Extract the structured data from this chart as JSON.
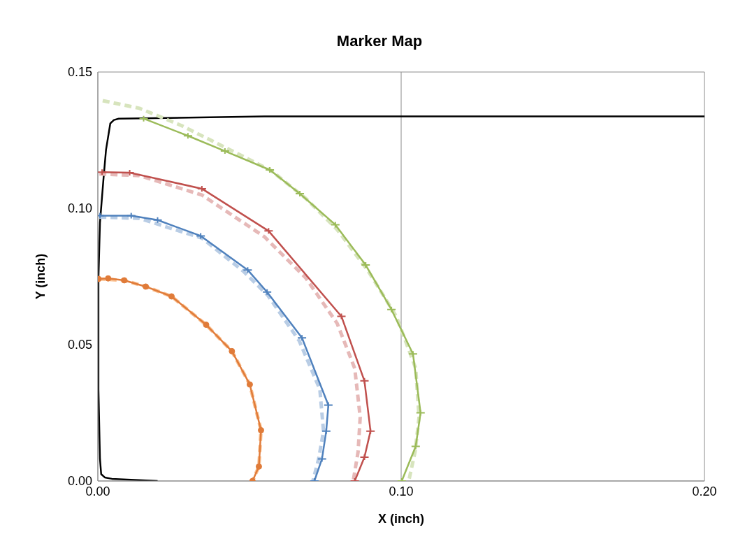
{
  "chart_data": {
    "type": "line",
    "title": "Marker Map",
    "xlabel": "X (inch)",
    "ylabel": "Y (inch)",
    "xlim": [
      0,
      0.2
    ],
    "xticks": [
      {
        "value": 0,
        "label": "0.00"
      },
      {
        "value": 0.1,
        "label": "0.10"
      },
      {
        "value": 0.2,
        "label": "0.20"
      }
    ],
    "ylim": [
      0,
      0.15
    ],
    "yticks": [
      {
        "value": 0,
        "label": "0.00"
      },
      {
        "value": 0.05,
        "label": "0.05"
      },
      {
        "value": 0.1,
        "label": "0.10"
      },
      {
        "value": 0.15,
        "label": "0.15"
      }
    ],
    "grid": true,
    "series": [
      {
        "color": "#000000",
        "line_style": "solid",
        "marker": "none",
        "x": [
          0.0197,
          0.0046,
          0.0023,
          0.0011,
          0.0007,
          0.0002,
          0.0002,
          0.0007,
          0.0018,
          0.0027,
          0.0041,
          0.0053,
          0.0069,
          0.0549,
          0.2
        ],
        "values": [
          0,
          0.0008,
          0.0013,
          0.0025,
          0.0081,
          0.0336,
          0.0744,
          0.0947,
          0.11,
          0.1215,
          0.1311,
          0.1324,
          0.1329,
          0.1337,
          0.1337
        ]
      },
      {
        "color": "#d7e4bd",
        "line_style": "dashed",
        "marker": "none",
        "x": [
          0.0016,
          0.0137,
          0.0275,
          0.0435,
          0.0572,
          0.0686,
          0.0789,
          0.0892,
          0.0984,
          0.1048,
          0.1059,
          0.1046,
          0.1025
        ],
        "values": [
          0.1395,
          0.1367,
          0.1304,
          0.1215,
          0.1138,
          0.1036,
          0.0922,
          0.0769,
          0.0604,
          0.0413,
          0.0234,
          0.0107,
          0
        ]
      },
      {
        "color": "#9bbb59",
        "line_style": "solid",
        "marker": "cross",
        "x": [
          0.0151,
          0.0297,
          0.0419,
          0.0567,
          0.0666,
          0.0783,
          0.0883,
          0.0968,
          0.1039,
          0.1064,
          0.1048,
          0.1002
        ],
        "values": [
          0.1329,
          0.1266,
          0.121,
          0.1141,
          0.1054,
          0.094,
          0.0792,
          0.0629,
          0.0466,
          0.025,
          0.0127,
          0
        ]
      },
      {
        "color": "#e6b9b8",
        "line_style": "dashed",
        "marker": "none",
        "x": [
          0.0005,
          0.0137,
          0.0343,
          0.0549,
          0.0686,
          0.0789,
          0.0847,
          0.0865,
          0.0858,
          0.0842
        ],
        "values": [
          0.1126,
          0.112,
          0.1049,
          0.0896,
          0.0744,
          0.0578,
          0.0413,
          0.0234,
          0.0107,
          0
        ]
      },
      {
        "color": "#c0504d",
        "line_style": "solid",
        "marker": "cross",
        "x": [
          0.0014,
          0.0105,
          0.0343,
          0.0563,
          0.0803,
          0.0879,
          0.0899,
          0.0879,
          0.0847
        ],
        "values": [
          0.1133,
          0.1131,
          0.1072,
          0.0917,
          0.0604,
          0.0367,
          0.0183,
          0.0087,
          0
        ]
      },
      {
        "color": "#b9cde5",
        "line_style": "dashed",
        "marker": "none",
        "x": [
          0.0005,
          0.0137,
          0.0343,
          0.048,
          0.0561,
          0.0664,
          0.0732,
          0.0744,
          0.0728,
          0.0709
        ],
        "values": [
          0.0968,
          0.0963,
          0.0891,
          0.0769,
          0.068,
          0.0514,
          0.0336,
          0.0183,
          0.0081,
          0
        ]
      },
      {
        "color": "#4f81bd",
        "line_style": "solid",
        "marker": "cross",
        "x": [
          0.0007,
          0.011,
          0.0197,
          0.0339,
          0.0494,
          0.0558,
          0.0673,
          0.076,
          0.0753,
          0.0739,
          0.0714
        ],
        "values": [
          0.0973,
          0.0973,
          0.0957,
          0.0899,
          0.0774,
          0.0693,
          0.0525,
          0.0278,
          0.0183,
          0.0081,
          0
        ]
      },
      {
        "color": "#fac090",
        "line_style": "dashed",
        "marker": "none",
        "x": [
          0.0002,
          0.0087,
          0.0158,
          0.0243,
          0.0357,
          0.0442,
          0.0501,
          0.0538,
          0.0531,
          0.051
        ],
        "values": [
          0.0741,
          0.0736,
          0.0713,
          0.0677,
          0.0573,
          0.0476,
          0.0354,
          0.0186,
          0.0053,
          0
        ]
      },
      {
        "color": "#e07b39",
        "line_style": "solid",
        "marker": "circle",
        "x": [
          0.0002,
          0.0034,
          0.0087,
          0.0158,
          0.0243,
          0.0357,
          0.0442,
          0.0501,
          0.0538,
          0.0531,
          0.051
        ],
        "values": [
          0.0741,
          0.0743,
          0.0736,
          0.0713,
          0.0677,
          0.0573,
          0.0476,
          0.0354,
          0.0186,
          0.0053,
          0
        ]
      }
    ]
  }
}
